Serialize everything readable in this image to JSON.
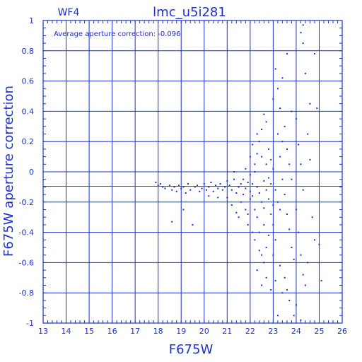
{
  "chart_data": {
    "type": "scatter",
    "title": "lmc_u5i281",
    "panel_label": "WF4",
    "annotation": "Average aperture correction: -0.096",
    "xlabel": "F675W",
    "ylabel": "F675W aperture correction",
    "xlim": [
      13,
      26
    ],
    "ylim": [
      -1,
      1
    ],
    "xticks": [
      13,
      14,
      15,
      16,
      17,
      18,
      19,
      20,
      21,
      22,
      23,
      24,
      25,
      26
    ],
    "yticks": [
      -1,
      -0.8,
      -0.6,
      -0.4,
      -0.2,
      0,
      0.2,
      0.4,
      0.6,
      0.8,
      1
    ],
    "ytick_labels": [
      "-1",
      "-0.8",
      "-0.6",
      "-0.4",
      "-0.2",
      "0",
      "0.2",
      "0.4",
      "0.6",
      "0.8",
      "1"
    ],
    "grid": true,
    "reference_line": -0.096,
    "colors": {
      "points": "#1f2fd0",
      "grid": "#1f2fd0",
      "reference_line": "#c0302a",
      "text": "#1f2fd0"
    },
    "points": [
      [
        17.9,
        -0.07
      ],
      [
        18.0,
        -0.09
      ],
      [
        18.1,
        -0.08
      ],
      [
        18.2,
        -0.1
      ],
      [
        18.3,
        -0.11
      ],
      [
        18.5,
        -0.09
      ],
      [
        18.6,
        -0.12
      ],
      [
        18.7,
        -0.1
      ],
      [
        18.8,
        -0.13
      ],
      [
        18.9,
        -0.09
      ],
      [
        19.0,
        -0.11
      ],
      [
        19.1,
        -0.1
      ],
      [
        19.2,
        -0.14
      ],
      [
        19.3,
        -0.08
      ],
      [
        19.4,
        -0.12
      ],
      [
        19.6,
        -0.1
      ],
      [
        19.7,
        -0.09
      ],
      [
        19.8,
        -0.13
      ],
      [
        19.9,
        -0.11
      ],
      [
        20.0,
        -0.08
      ],
      [
        20.1,
        -0.12
      ],
      [
        20.2,
        -0.1
      ],
      [
        20.3,
        -0.07
      ],
      [
        20.4,
        -0.13
      ],
      [
        20.5,
        -0.09
      ],
      [
        20.6,
        -0.11
      ],
      [
        20.7,
        -0.08
      ],
      [
        20.8,
        -0.12
      ],
      [
        20.9,
        -0.1
      ],
      [
        21.0,
        -0.06
      ],
      [
        18.6,
        -0.33
      ],
      [
        19.1,
        -0.25
      ],
      [
        19.5,
        -0.35
      ],
      [
        20.2,
        -0.16
      ],
      [
        20.6,
        -0.17
      ],
      [
        21.0,
        -0.17
      ],
      [
        21.1,
        -0.09
      ],
      [
        21.2,
        -0.12
      ],
      [
        21.3,
        -0.05
      ],
      [
        21.4,
        -0.14
      ],
      [
        21.5,
        -0.1
      ],
      [
        21.6,
        -0.08
      ],
      [
        21.7,
        -0.15
      ],
      [
        21.8,
        -0.11
      ],
      [
        21.9,
        -0.07
      ],
      [
        22.0,
        -0.13
      ],
      [
        21.2,
        -0.22
      ],
      [
        21.4,
        -0.27
      ],
      [
        21.6,
        -0.2
      ],
      [
        21.8,
        -0.25
      ],
      [
        21.5,
        -0.3
      ],
      [
        21.9,
        -0.35
      ],
      [
        21.7,
        -0.05
      ],
      [
        21.3,
        0.0
      ],
      [
        21.8,
        0.02
      ],
      [
        22.0,
        -0.02
      ],
      [
        22.1,
        -0.16
      ],
      [
        22.2,
        -0.25
      ],
      [
        22.3,
        -0.3
      ],
      [
        22.1,
        -0.4
      ],
      [
        22.2,
        -0.45
      ],
      [
        22.4,
        -0.52
      ],
      [
        22.3,
        -0.65
      ],
      [
        22.6,
        -0.6
      ],
      [
        22.5,
        -0.55
      ],
      [
        22.2,
        0.05
      ],
      [
        22.3,
        0.12
      ],
      [
        22.4,
        0.2
      ],
      [
        22.5,
        0.28
      ],
      [
        22.6,
        0.38
      ],
      [
        22.7,
        0.33
      ],
      [
        22.8,
        0.15
      ],
      [
        22.9,
        0.08
      ],
      [
        23.0,
        0.02
      ],
      [
        22.6,
        -0.06
      ],
      [
        22.8,
        -0.18
      ],
      [
        22.9,
        -0.28
      ],
      [
        23.0,
        -0.35
      ],
      [
        23.1,
        -0.45
      ],
      [
        22.7,
        -0.5
      ],
      [
        23.0,
        0.48
      ],
      [
        23.2,
        0.55
      ],
      [
        23.3,
        0.42
      ],
      [
        23.1,
        0.68
      ],
      [
        23.4,
        0.62
      ],
      [
        23.5,
        0.3
      ],
      [
        23.2,
        0.25
      ],
      [
        23.3,
        0.1
      ],
      [
        23.4,
        -0.05
      ],
      [
        23.5,
        -0.15
      ],
      [
        23.6,
        -0.28
      ],
      [
        23.7,
        -0.38
      ],
      [
        23.8,
        -0.5
      ],
      [
        23.3,
        -0.62
      ],
      [
        23.5,
        -0.7
      ],
      [
        23.6,
        -0.78
      ],
      [
        23.7,
        -0.85
      ],
      [
        23.9,
        -0.58
      ],
      [
        23.4,
        -0.8
      ],
      [
        23.2,
        -0.95
      ],
      [
        23.6,
        0.78
      ],
      [
        23.8,
        0.4
      ],
      [
        24.0,
        0.35
      ],
      [
        24.1,
        0.18
      ],
      [
        24.2,
        0.05
      ],
      [
        24.3,
        -0.12
      ],
      [
        24.0,
        -0.25
      ],
      [
        24.1,
        -0.4
      ],
      [
        24.2,
        -0.55
      ],
      [
        24.3,
        -0.68
      ],
      [
        24.0,
        -0.88
      ],
      [
        24.4,
        -0.75
      ],
      [
        24.5,
        -0.6
      ],
      [
        24.2,
        0.92
      ],
      [
        24.3,
        0.85
      ],
      [
        24.4,
        0.65
      ],
      [
        24.6,
        0.45
      ],
      [
        24.5,
        0.25
      ],
      [
        24.6,
        0.08
      ],
      [
        24.7,
        -0.3
      ],
      [
        24.8,
        -0.45
      ],
      [
        25.0,
        -0.48
      ],
      [
        24.9,
        0.42
      ],
      [
        24.8,
        0.78
      ],
      [
        25.1,
        -0.72
      ],
      [
        24.3,
        0.97
      ],
      [
        23.9,
        -0.95
      ],
      [
        24.2,
        -0.98
      ],
      [
        22.9,
        -0.78
      ],
      [
        23.1,
        -0.72
      ],
      [
        21.9,
        -0.28
      ],
      [
        22.0,
        -0.18
      ],
      [
        22.1,
        -0.08
      ],
      [
        22.2,
        0.0
      ],
      [
        22.3,
        -0.1
      ],
      [
        22.4,
        -0.14
      ],
      [
        22.5,
        -0.2
      ],
      [
        22.6,
        -0.24
      ],
      [
        22.7,
        -0.12
      ],
      [
        22.8,
        -0.04
      ],
      [
        22.0,
        0.1
      ],
      [
        22.1,
        0.18
      ],
      [
        22.3,
        0.25
      ],
      [
        22.5,
        0.1
      ],
      [
        22.7,
        0.05
      ],
      [
        22.9,
        -0.08
      ],
      [
        23.0,
        -0.22
      ],
      [
        23.1,
        -0.12
      ],
      [
        23.2,
        -0.2
      ],
      [
        23.3,
        -0.25
      ],
      [
        22.4,
        -0.4
      ],
      [
        22.6,
        -0.35
      ],
      [
        22.8,
        -0.42
      ],
      [
        23.0,
        -0.55
      ],
      [
        22.5,
        -0.75
      ],
      [
        22.7,
        -0.7
      ],
      [
        23.4,
        0.2
      ],
      [
        23.6,
        0.15
      ],
      [
        23.7,
        0.05
      ],
      [
        23.8,
        -0.05
      ]
    ]
  }
}
